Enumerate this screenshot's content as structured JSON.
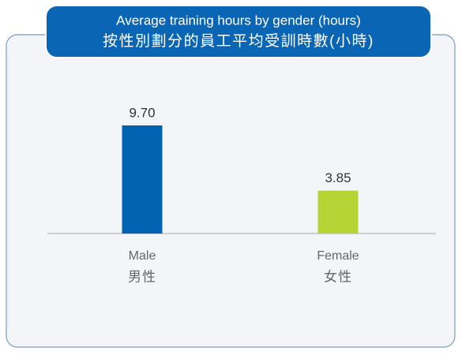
{
  "chart_data": {
    "type": "bar",
    "title": "Average training hours by gender (hours)",
    "subtitle": "按性別劃分的員工平均受訓時數(小時)",
    "categories": [
      "Male",
      "Female"
    ],
    "categories_zh": [
      "男性",
      "女性"
    ],
    "values": [
      9.7,
      3.85
    ],
    "value_labels": [
      "9.70",
      "3.85"
    ],
    "colors": [
      "#0063b1",
      "#b8d335"
    ]
  }
}
